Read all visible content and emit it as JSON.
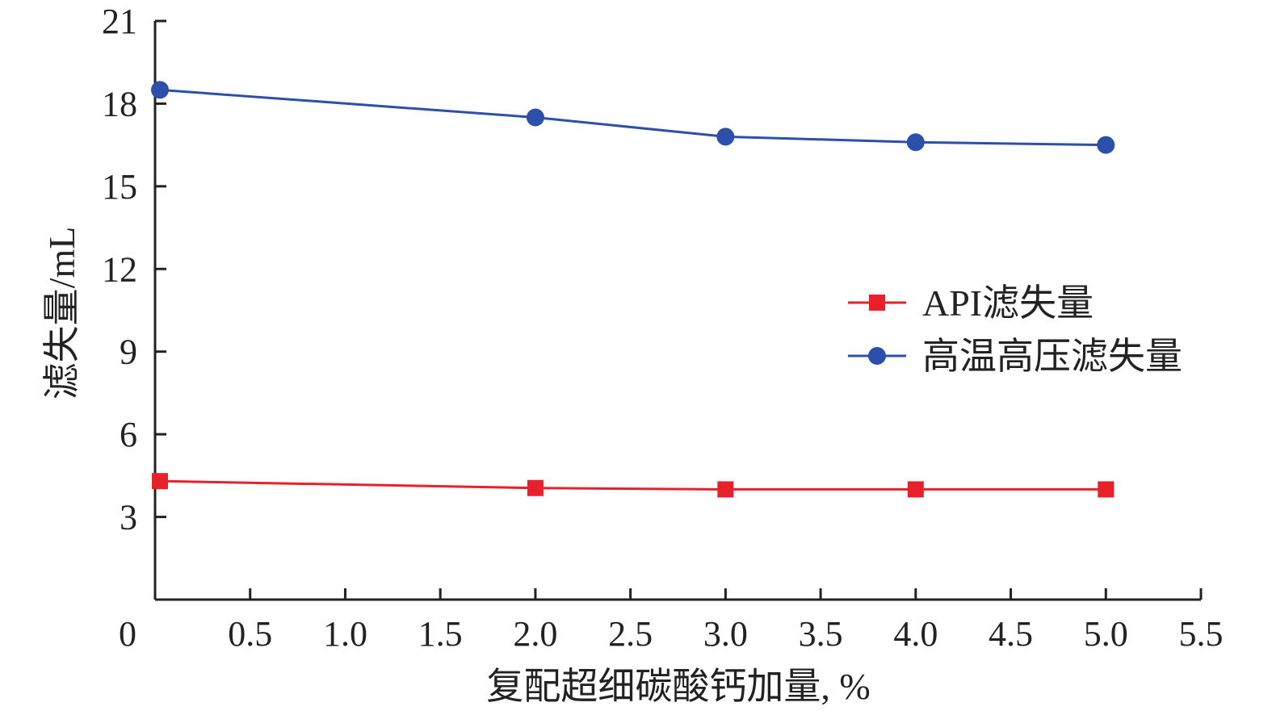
{
  "chart_data": {
    "type": "line",
    "title": "",
    "xlabel": "复配超细碳酸钙加量, %",
    "ylabel": "滤失量/mL",
    "xlim": [
      0,
      5.5
    ],
    "ylim": [
      0,
      21
    ],
    "x_ticks": [
      "0",
      "0.5",
      "1.0",
      "1.5",
      "2.0",
      "2.5",
      "3.0",
      "3.5",
      "4.0",
      "4.5",
      "5.0",
      "5.5"
    ],
    "x_tick_values": [
      0,
      0.5,
      1.0,
      1.5,
      2.0,
      2.5,
      3.0,
      3.5,
      4.0,
      4.5,
      5.0,
      5.5
    ],
    "y_ticks": [
      "3",
      "6",
      "9",
      "12",
      "15",
      "18",
      "21"
    ],
    "y_tick_values": [
      3,
      6,
      9,
      12,
      15,
      18,
      21
    ],
    "grid": false,
    "legend_position": "right",
    "x": [
      0,
      2,
      3,
      4,
      5
    ],
    "series": [
      {
        "name": "API滤失量",
        "values": [
          4.3,
          4.05,
          4.0,
          4.0,
          4.0
        ],
        "color": "#e8202a",
        "marker": "square"
      },
      {
        "name": "高温高压滤失量",
        "values": [
          18.5,
          17.5,
          16.8,
          16.6,
          16.5
        ],
        "color": "#2b4faa",
        "marker": "circle"
      }
    ]
  }
}
